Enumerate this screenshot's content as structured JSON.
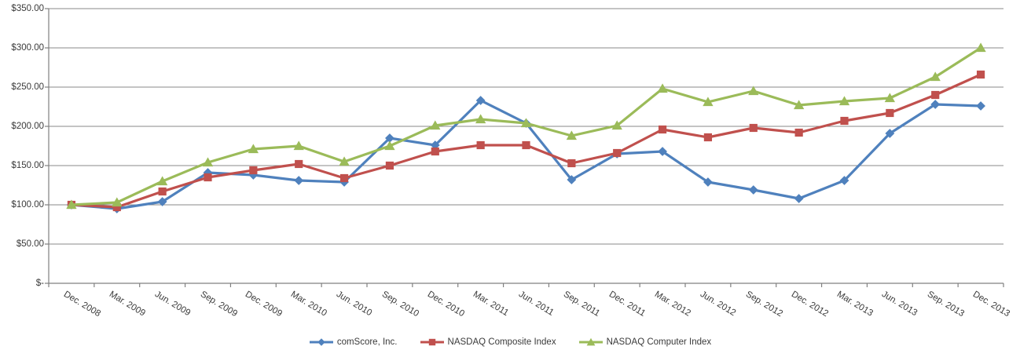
{
  "colors": {
    "background": "#FFFFFF",
    "gridline": "#898989",
    "axis": "#808080",
    "text": "#3A3A3A"
  },
  "chart_data": {
    "type": "line",
    "title": "",
    "xlabel": "",
    "ylabel": "",
    "grid": true,
    "legend_position": "bottom-center",
    "y_axis": {
      "min": 0,
      "max": 350,
      "step": 50,
      "tick_labels": [
        "$-",
        "$50.00",
        "$100.00",
        "$150.00",
        "$200.00",
        "$250.00",
        "$300.00",
        "$350.00"
      ]
    },
    "categories": [
      "Dec. 2008",
      "Mar. 2009",
      "Jun. 2009",
      "Sep. 2009",
      "Dec. 2009",
      "Mar. 2010",
      "Jun. 2010",
      "Sep. 2010",
      "Dec. 2010",
      "Mar. 2011",
      "Jun. 2011",
      "Sep. 2011",
      "Dec. 2011",
      "Mar. 2012",
      "Jun. 2012",
      "Sep. 2012",
      "Dec. 2012",
      "Mar. 2013",
      "Jun. 2013",
      "Sep. 2013",
      "Dec. 2013"
    ],
    "series": [
      {
        "name": "comScore, Inc.",
        "color": "#4F81BD",
        "marker": "diamond",
        "values": [
          100,
          95,
          104,
          141,
          138,
          131,
          129,
          185,
          176,
          233,
          204,
          132,
          165,
          168,
          129,
          119,
          108,
          131,
          191,
          228,
          226
        ]
      },
      {
        "name": "NASDAQ Composite Index",
        "color": "#C0504D",
        "marker": "square",
        "values": [
          100,
          97,
          117,
          135,
          144,
          152,
          134,
          150,
          168,
          176,
          176,
          153,
          166,
          196,
          186,
          198,
          192,
          207,
          217,
          240,
          266
        ]
      },
      {
        "name": "NASDAQ Computer Index",
        "color": "#9BBB59",
        "marker": "triangle",
        "values": [
          100,
          103,
          130,
          154,
          171,
          175,
          155,
          175,
          201,
          209,
          204,
          188,
          201,
          248,
          231,
          245,
          227,
          232,
          236,
          263,
          300
        ]
      }
    ]
  }
}
